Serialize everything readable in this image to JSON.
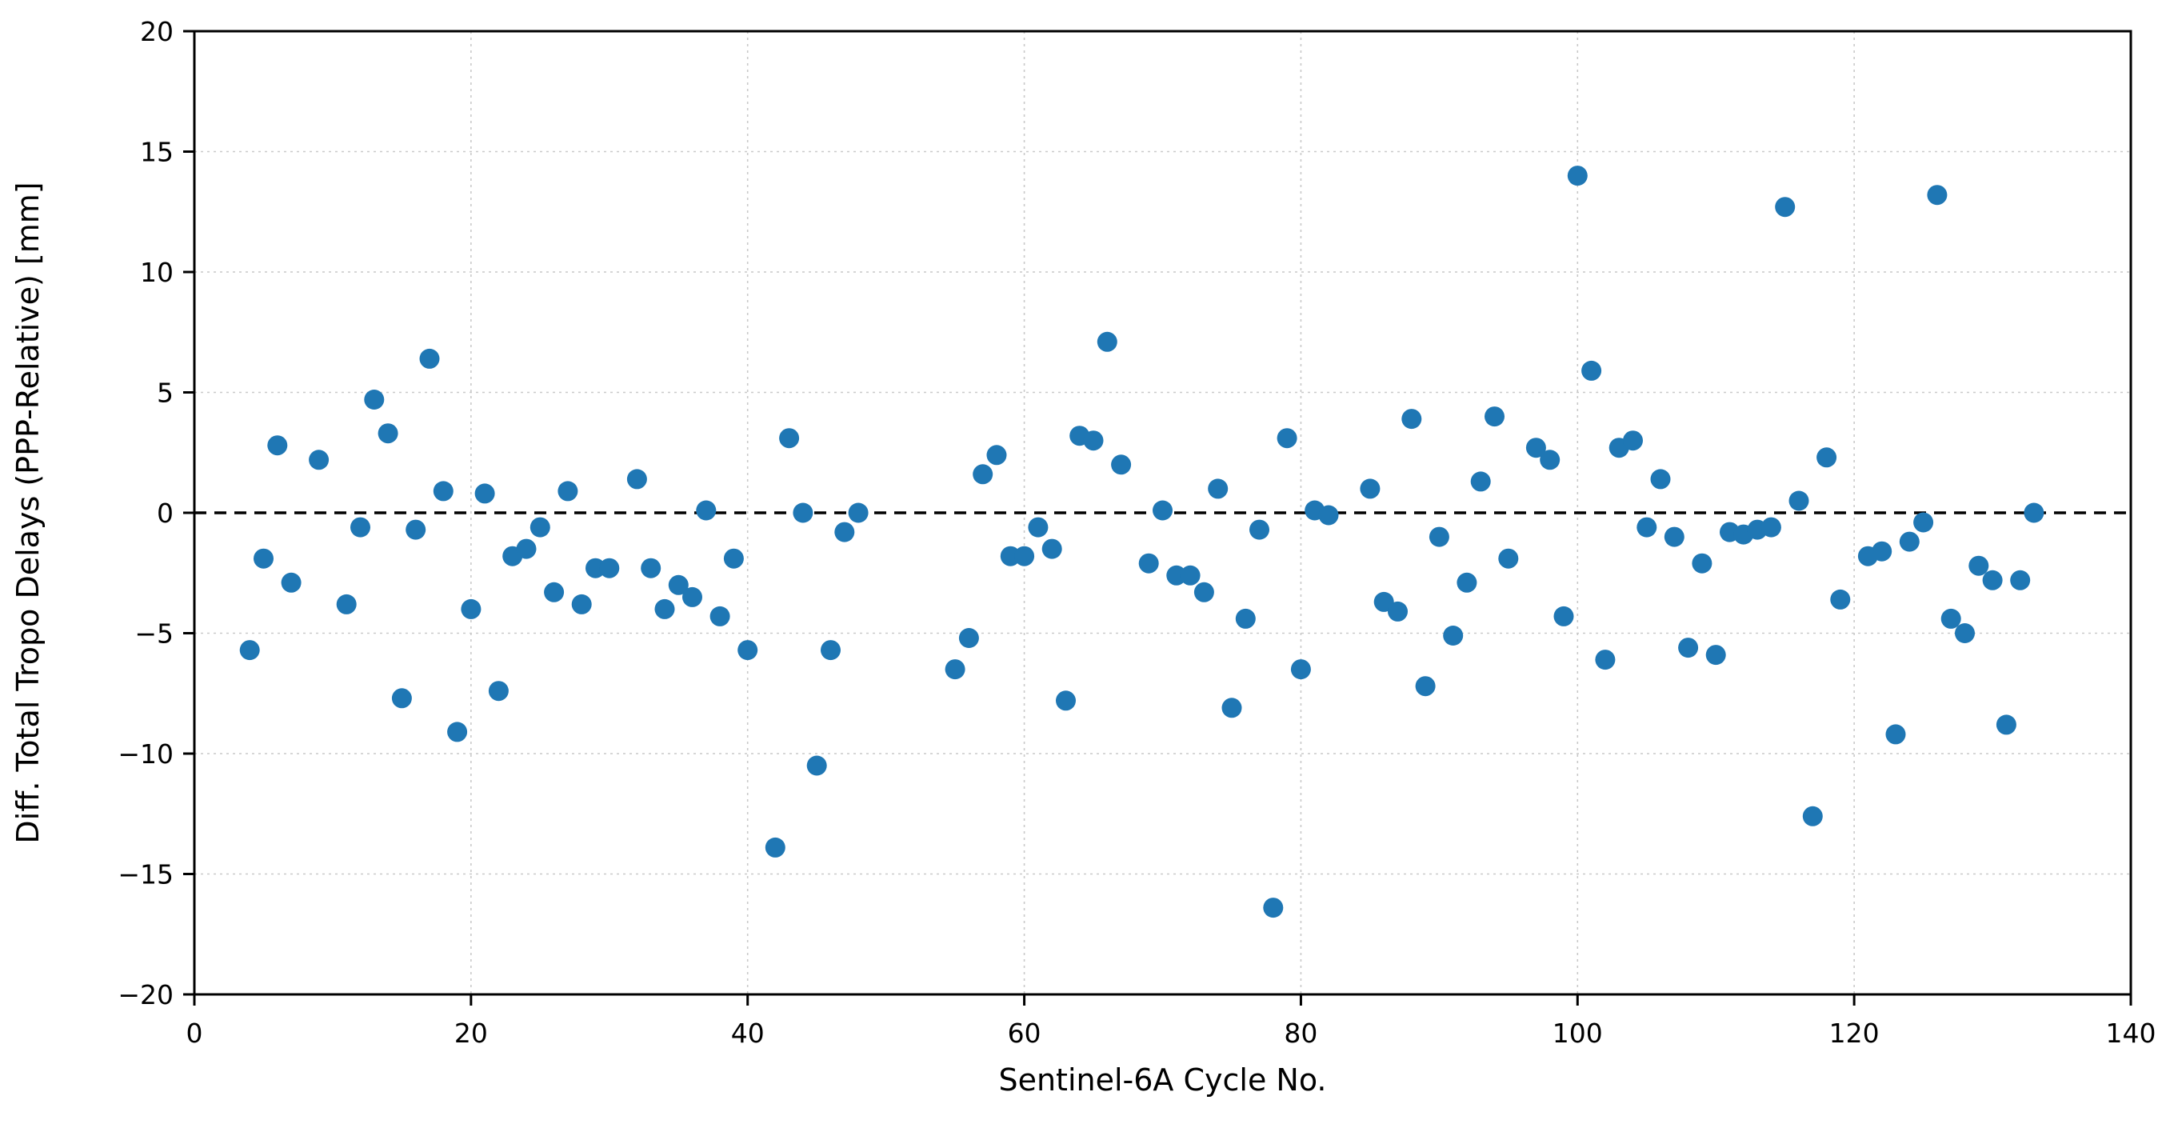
{
  "chart_data": {
    "type": "scatter",
    "title": "",
    "xlabel": "Sentinel-6A Cycle No.",
    "ylabel": "Diff. Total Tropo Delays (PPP-Relative) [mm]",
    "xlim": [
      0,
      140
    ],
    "ylim": [
      -20,
      20
    ],
    "xticks": [
      0,
      20,
      40,
      60,
      80,
      100,
      120,
      140
    ],
    "yticks": [
      -20,
      -15,
      -10,
      -5,
      0,
      5,
      10,
      15,
      20
    ],
    "grid": true,
    "legend": null,
    "zero_line": {
      "y": 0,
      "style": "dashed",
      "color": "#000000"
    },
    "marker": {
      "shape": "circle",
      "color": "#1f77b4",
      "radius_px": 12.5
    },
    "grid_color": "#c9c9c9",
    "spine_color": "#000000",
    "points": [
      [
        4,
        -5.7
      ],
      [
        5,
        -1.9
      ],
      [
        6,
        2.8
      ],
      [
        7,
        -2.9
      ],
      [
        9,
        2.2
      ],
      [
        11,
        -3.8
      ],
      [
        12,
        -0.6
      ],
      [
        13,
        4.7
      ],
      [
        14,
        3.3
      ],
      [
        15,
        -7.7
      ],
      [
        16,
        -0.7
      ],
      [
        17,
        6.4
      ],
      [
        18,
        0.9
      ],
      [
        19,
        -9.1
      ],
      [
        20,
        -4.0
      ],
      [
        21,
        0.8
      ],
      [
        22,
        -7.4
      ],
      [
        23,
        -1.8
      ],
      [
        24,
        -1.5
      ],
      [
        25,
        -0.6
      ],
      [
        26,
        -3.3
      ],
      [
        27,
        0.9
      ],
      [
        28,
        -3.8
      ],
      [
        29,
        -2.3
      ],
      [
        30,
        -2.3
      ],
      [
        32,
        1.4
      ],
      [
        33,
        -2.3
      ],
      [
        34,
        -4.0
      ],
      [
        35,
        -3.0
      ],
      [
        36,
        -3.5
      ],
      [
        37,
        0.1
      ],
      [
        38,
        -4.3
      ],
      [
        39,
        -1.9
      ],
      [
        40,
        -5.7
      ],
      [
        42,
        -13.9
      ],
      [
        43,
        3.1
      ],
      [
        44,
        0.0
      ],
      [
        45,
        -10.5
      ],
      [
        46,
        -5.7
      ],
      [
        47,
        -0.8
      ],
      [
        48,
        0.0
      ],
      [
        55,
        -6.5
      ],
      [
        56,
        -5.2
      ],
      [
        57,
        1.6
      ],
      [
        58,
        2.4
      ],
      [
        59,
        -1.8
      ],
      [
        60,
        -1.8
      ],
      [
        61,
        -0.6
      ],
      [
        62,
        -1.5
      ],
      [
        63,
        -7.8
      ],
      [
        64,
        3.2
      ],
      [
        65,
        3.0
      ],
      [
        66,
        7.1
      ],
      [
        67,
        2.0
      ],
      [
        69,
        -2.1
      ],
      [
        70,
        0.1
      ],
      [
        71,
        -2.6
      ],
      [
        72,
        -2.6
      ],
      [
        73,
        -3.3
      ],
      [
        74,
        1.0
      ],
      [
        75,
        -8.1
      ],
      [
        76,
        -4.4
      ],
      [
        77,
        -0.7
      ],
      [
        78,
        -16.4
      ],
      [
        79,
        3.1
      ],
      [
        80,
        -6.5
      ],
      [
        81,
        0.1
      ],
      [
        82,
        -0.1
      ],
      [
        85,
        1.0
      ],
      [
        86,
        -3.7
      ],
      [
        87,
        -4.1
      ],
      [
        88,
        3.9
      ],
      [
        89,
        -7.2
      ],
      [
        90,
        -1.0
      ],
      [
        91,
        -5.1
      ],
      [
        92,
        -2.9
      ],
      [
        93,
        1.3
      ],
      [
        94,
        4.0
      ],
      [
        95,
        -1.9
      ],
      [
        97,
        2.7
      ],
      [
        98,
        2.2
      ],
      [
        99,
        -4.3
      ],
      [
        100,
        14.0
      ],
      [
        101,
        5.9
      ],
      [
        102,
        -6.1
      ],
      [
        103,
        2.7
      ],
      [
        104,
        3.0
      ],
      [
        105,
        -0.6
      ],
      [
        106,
        1.4
      ],
      [
        107,
        -1.0
      ],
      [
        108,
        -5.6
      ],
      [
        109,
        -2.1
      ],
      [
        110,
        -5.9
      ],
      [
        111,
        -0.8
      ],
      [
        112,
        -0.9
      ],
      [
        113,
        -0.7
      ],
      [
        114,
        -0.6
      ],
      [
        115,
        12.7
      ],
      [
        116,
        0.5
      ],
      [
        117,
        -12.6
      ],
      [
        118,
        2.3
      ],
      [
        119,
        -3.6
      ],
      [
        121,
        -1.8
      ],
      [
        122,
        -1.6
      ],
      [
        123,
        -9.2
      ],
      [
        124,
        -1.2
      ],
      [
        125,
        -0.4
      ],
      [
        126,
        13.2
      ],
      [
        127,
        -4.4
      ],
      [
        128,
        -5.0
      ],
      [
        129,
        -2.2
      ],
      [
        130,
        -2.8
      ],
      [
        131,
        -8.8
      ],
      [
        132,
        -2.8
      ],
      [
        133,
        0.0
      ]
    ]
  }
}
